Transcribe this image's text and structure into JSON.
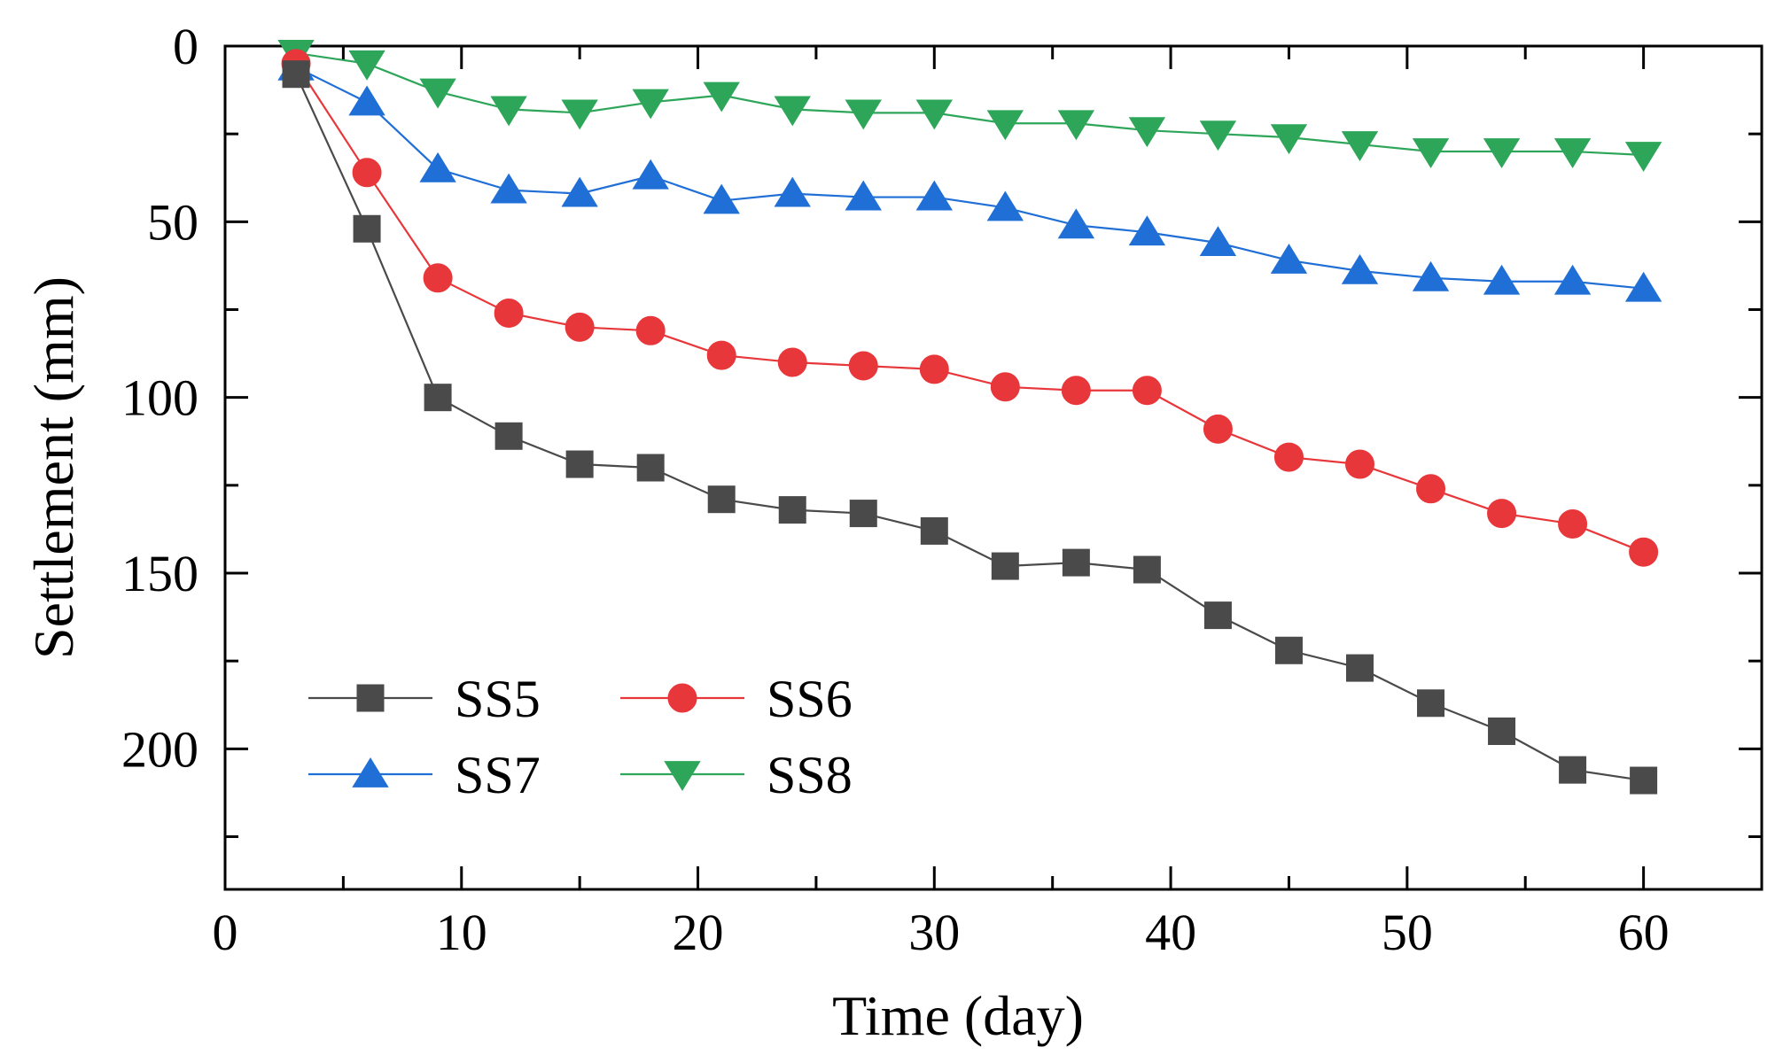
{
  "chart_data": {
    "type": "line",
    "title": "",
    "xlabel": "Time (day)",
    "ylabel": "Settlement  (mm)",
    "xlim": [
      0,
      65
    ],
    "ylim": [
      0,
      240
    ],
    "y_inverted": true,
    "grid": false,
    "legend_position": "bottom-left",
    "x_ticks": [
      0,
      10,
      20,
      30,
      40,
      50,
      60
    ],
    "x_tick_labels": [
      "0",
      "10",
      "20",
      "30",
      "40",
      "50",
      "60"
    ],
    "y_ticks": [
      0,
      50,
      100,
      150,
      200
    ],
    "y_tick_labels": [
      "0",
      "50",
      "100",
      "150",
      "200"
    ],
    "x": [
      3,
      6,
      9,
      12,
      15,
      18,
      21,
      24,
      27,
      30,
      33,
      36,
      39,
      42,
      45,
      48,
      51,
      54,
      57,
      60
    ],
    "series": [
      {
        "name": "SS5",
        "color": "#4a4a4a",
        "marker": "square",
        "values": [
          8,
          52,
          100,
          111,
          119,
          120,
          129,
          132,
          133,
          138,
          148,
          147,
          149,
          162,
          172,
          177,
          187,
          195,
          206,
          209
        ]
      },
      {
        "name": "SS6",
        "color": "#e8373a",
        "marker": "circle",
        "values": [
          5,
          36,
          66,
          76,
          80,
          81,
          88,
          90,
          91,
          92,
          97,
          98,
          98,
          109,
          117,
          119,
          126,
          133,
          136,
          144
        ]
      },
      {
        "name": "SS7",
        "color": "#1f6fd6",
        "marker": "triangle-up",
        "values": [
          6,
          16,
          35,
          41,
          42,
          37,
          44,
          42,
          43,
          43,
          46,
          51,
          53,
          56,
          61,
          64,
          66,
          67,
          67,
          69
        ]
      },
      {
        "name": "SS8",
        "color": "#2ea65a",
        "marker": "triangle-down",
        "values": [
          2,
          5,
          13,
          18,
          19,
          16,
          14,
          18,
          19,
          19,
          22,
          22,
          24,
          25,
          26,
          28,
          30,
          30,
          30,
          31
        ]
      }
    ]
  }
}
